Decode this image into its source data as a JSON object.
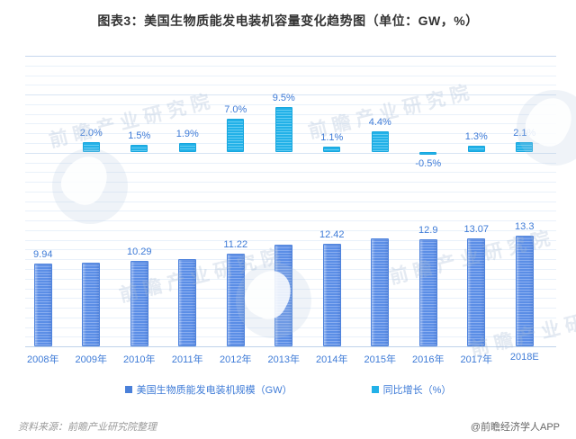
{
  "title": "图表3：美国生物质能发电装机容量变化趋势图（单位：GW，%）",
  "source_note": "资料来源：前瞻产业研究院整理",
  "credit": "@前瞻经济学人APP",
  "watermark": {
    "text": "前瞻产业研究院"
  },
  "colors": {
    "capacity_bar": "#5B8EE6",
    "capacity_bar_stripe": "#8AAEF0",
    "growth_bar": "#22B1E8",
    "growth_bar_stripe": "#66CDF2",
    "label_text": "#3E7BD7",
    "title_text": "#333333",
    "source_text": "#9A9A9A",
    "credit_text": "#666666",
    "grid_minor": "#E9F1FA",
    "grid_major": "#C5D6EE"
  },
  "legend": [
    {
      "label": "美国生物质能发电装机规模（GW）",
      "color": "#4A80D9"
    },
    {
      "label": "同比增长（%）",
      "color": "#22B1E8"
    }
  ],
  "chart_data": {
    "type": "bar",
    "title": "图表3：美国生物质能发电装机容量变化趋势图（单位：GW，%）",
    "categories": [
      "2008年",
      "2009年",
      "2010年",
      "2011年",
      "2012年",
      "2013年",
      "2014年",
      "2015年",
      "2016年",
      "2017年",
      "2018E"
    ],
    "series": [
      {
        "name": "美国生物质能发电装机规模（GW）",
        "unit": "GW",
        "values": [
          9.94,
          10.14,
          10.29,
          10.49,
          11.22,
          12.29,
          12.42,
          12.97,
          12.9,
          13.07,
          13.3
        ],
        "labels": [
          "9.94",
          null,
          "10.29",
          null,
          "11.22",
          null,
          "12.42",
          null,
          "12.9",
          "13.07",
          "13.3"
        ]
      },
      {
        "name": "同比增长（%）",
        "unit": "%",
        "values": [
          null,
          2.0,
          1.5,
          1.9,
          7.0,
          9.5,
          1.1,
          4.4,
          -0.5,
          1.3,
          2.1
        ],
        "labels": [
          null,
          "2.0%",
          "1.5%",
          "1.9%",
          "7.0%",
          "9.5%",
          "1.1%",
          "4.4%",
          "-0.5%",
          "1.3%",
          "2.1%"
        ]
      }
    ],
    "grid": true,
    "legend_position": "bottom",
    "axes_visible": false
  }
}
